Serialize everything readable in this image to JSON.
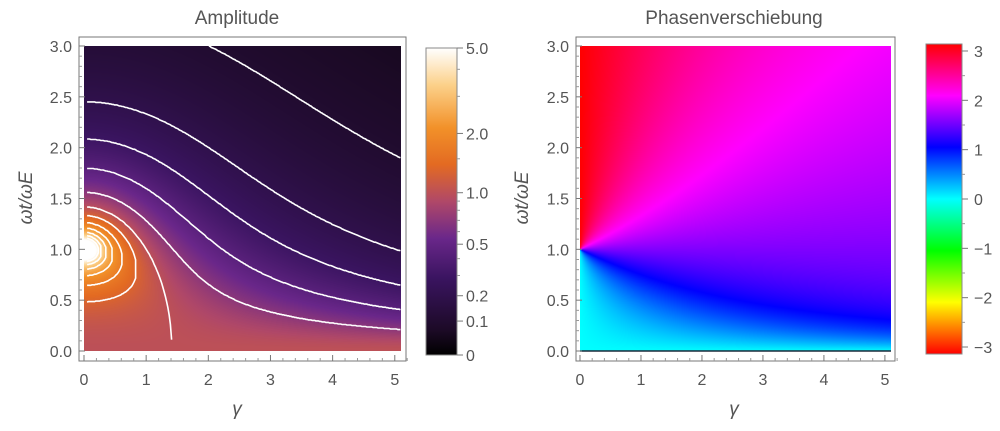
{
  "chart_data": [
    {
      "type": "heatmap",
      "title": "Amplitude",
      "xlabel": "γ",
      "ylabel": "ωt/ωE",
      "xlim": [
        0,
        5.1
      ],
      "ylim": [
        0,
        3.0
      ],
      "xticks": [
        "0",
        "1",
        "2",
        "3",
        "4",
        "5"
      ],
      "yticks": [
        "0.0",
        "0.5",
        "1.0",
        "1.5",
        "2.0",
        "2.5",
        "3.0"
      ],
      "function": "A = 1/sqrt((1-r^2)^2 + (gamma*r)^2), r = ωt/ωE",
      "contours": true,
      "contour_color": "#ffffff",
      "colorbar": {
        "scale": "nonlinear (approx. logarithmic)",
        "range": [
          0,
          5.0
        ],
        "ticks": [
          "5.0",
          "2.0",
          "1.0",
          "0.5",
          "0.2",
          "0.1",
          "0"
        ],
        "colormap": [
          "#000000",
          "#2a0e3c",
          "#5a1f82",
          "#a0418c",
          "#d5603d",
          "#f08218",
          "#fbb94c",
          "#ffffff"
        ]
      }
    },
    {
      "type": "heatmap",
      "title": "Phasenverschiebung",
      "xlabel": "γ",
      "ylabel": "ωt/ωE",
      "xlim": [
        0,
        5.1
      ],
      "ylim": [
        0,
        3.0
      ],
      "xticks": [
        "0",
        "1",
        "2",
        "3",
        "4",
        "5"
      ],
      "yticks": [
        "0.0",
        "0.5",
        "1.0",
        "1.5",
        "2.0",
        "2.5",
        "3.0"
      ],
      "function": "phi = atan2(gamma*r, 1 - r^2), r = ωt/ωE",
      "colorbar": {
        "scale": "linear",
        "range": [
          -3.14,
          3.14
        ],
        "ticks": [
          "3",
          "2",
          "1",
          "0",
          "−1",
          "−2",
          "−3"
        ],
        "colormap": "hue rainbow: red → orange → yellow → green → cyan → blue → magenta → red"
      }
    }
  ]
}
